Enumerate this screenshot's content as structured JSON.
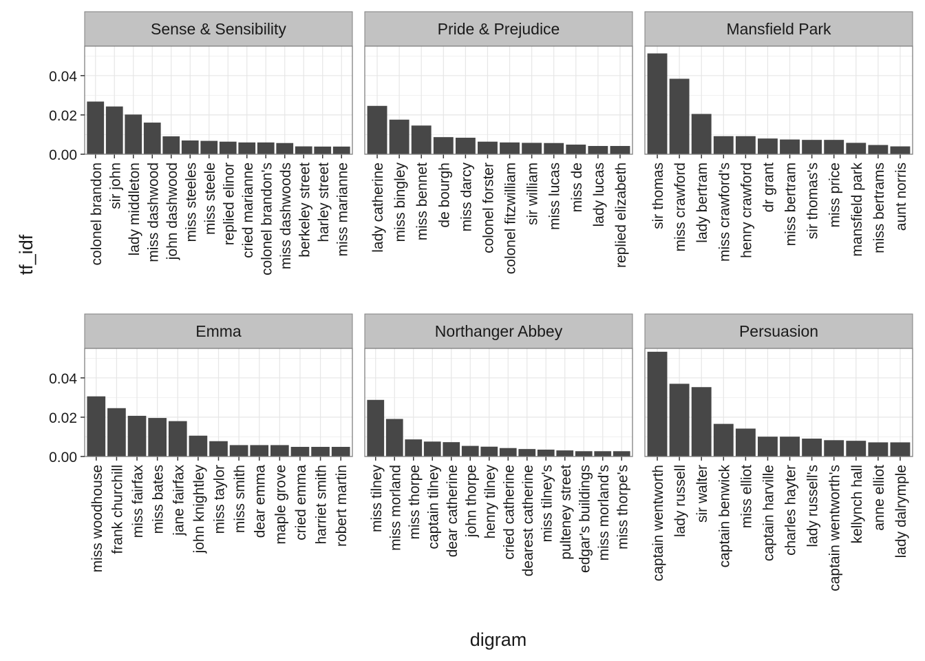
{
  "chart_data": {
    "type": "bar",
    "layout": "facet_wrap",
    "xlabel": "digram",
    "ylabel": "tf_idf",
    "ylim": [
      0,
      0.055
    ],
    "y_ticks": [
      "0.00",
      "0.02",
      "0.04"
    ],
    "y_tick_values": [
      0,
      0.02,
      0.04
    ],
    "grid": true,
    "bar_color": "#474747",
    "panel_border_color": "#7f7f7f",
    "strip_fill": "#c2c2c2",
    "gridline_color": "#e6e6e6",
    "facets": [
      {
        "title": "Sense & Sensibility",
        "categories": [
          "colonel brandon",
          "sir john",
          "lady middleton",
          "miss dashwood",
          "john dashwood",
          "miss steeles",
          "miss steele",
          "replied elinor",
          "cried marianne",
          "colonel brandon's",
          "miss dashwoods",
          "berkeley street",
          "harley street",
          "miss marianne"
        ],
        "values": [
          0.0268,
          0.0243,
          0.0202,
          0.0161,
          0.0091,
          0.007,
          0.0068,
          0.0064,
          0.006,
          0.006,
          0.0057,
          0.004,
          0.0039,
          0.0039
        ]
      },
      {
        "title": "Pride & Prejudice",
        "categories": [
          "lady catherine",
          "miss bingley",
          "miss bennet",
          "de bourgh",
          "miss darcy",
          "colonel forster",
          "colonel fitzwilliam",
          "sir william",
          "miss lucas",
          "miss de",
          "lady lucas",
          "replied elizabeth"
        ],
        "values": [
          0.0246,
          0.0176,
          0.0146,
          0.0087,
          0.0084,
          0.0064,
          0.006,
          0.0058,
          0.0057,
          0.0049,
          0.0042,
          0.0042
        ]
      },
      {
        "title": "Mansfield Park",
        "categories": [
          "sir thomas",
          "miss crawford",
          "lady bertram",
          "miss crawford's",
          "henry crawford",
          "dr grant",
          "miss bertram",
          "sir thomas's",
          "miss price",
          "mansfield park",
          "miss bertrams",
          "aunt norris"
        ],
        "values": [
          0.0513,
          0.0384,
          0.0205,
          0.0092,
          0.0092,
          0.008,
          0.0075,
          0.0073,
          0.0073,
          0.0058,
          0.0047,
          0.004
        ]
      },
      {
        "title": "Emma",
        "categories": [
          "miss woodhouse",
          "frank churchill",
          "miss fairfax",
          "miss bates",
          "jane fairfax",
          "john knightley",
          "miss taylor",
          "miss smith",
          "dear emma",
          "maple grove",
          "cried emma",
          "harriet smith",
          "robert martin"
        ],
        "values": [
          0.0306,
          0.0246,
          0.0207,
          0.0196,
          0.018,
          0.0106,
          0.0078,
          0.0058,
          0.0058,
          0.0058,
          0.0049,
          0.0049,
          0.0049
        ]
      },
      {
        "title": "Northanger Abbey",
        "categories": [
          "miss tilney",
          "miss morland",
          "miss thorpe",
          "captain tilney",
          "dear catherine",
          "john thorpe",
          "henry tilney",
          "cried catherine",
          "dearest catherine",
          "miss tilney's",
          "pulteney street",
          "edgar's buildings",
          "miss morland's",
          "miss thorpe's"
        ],
        "values": [
          0.0288,
          0.0191,
          0.0087,
          0.0076,
          0.0073,
          0.0054,
          0.005,
          0.0043,
          0.0038,
          0.0035,
          0.0031,
          0.0027,
          0.0027,
          0.0027
        ]
      },
      {
        "title": "Persuasion",
        "categories": [
          "captain wentworth",
          "lady russell",
          "sir walter",
          "captain benwick",
          "miss elliot",
          "captain harville",
          "charles hayter",
          "lady russell's",
          "captain wentworth's",
          "kellynch hall",
          "anne elliot",
          "lady dalrymple"
        ],
        "values": [
          0.0533,
          0.037,
          0.0353,
          0.0166,
          0.0142,
          0.0101,
          0.0101,
          0.0091,
          0.0083,
          0.008,
          0.0072,
          0.0072
        ]
      }
    ]
  }
}
